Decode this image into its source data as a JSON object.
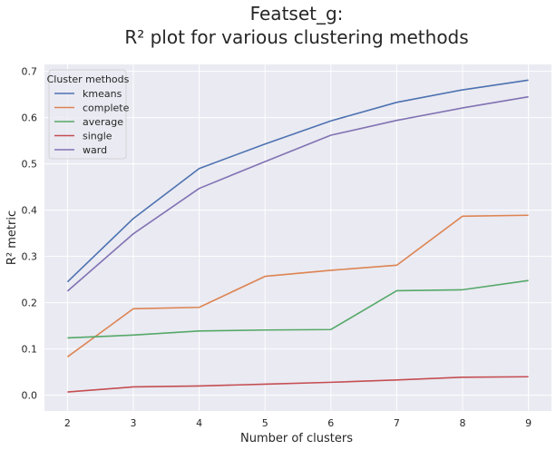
{
  "chart_data": {
    "type": "line",
    "title": "Featset_g:",
    "subtitle": "R² plot for various clustering methods",
    "xlabel": "Number of clusters",
    "ylabel": "R² metric",
    "x": [
      2,
      3,
      4,
      5,
      6,
      7,
      8,
      9
    ],
    "xlim": [
      1.65,
      9.35
    ],
    "ylim": [
      -0.034,
      0.715
    ],
    "yticks": [
      0.0,
      0.1,
      0.2,
      0.3,
      0.4,
      0.5,
      0.6,
      0.7
    ],
    "ytick_labels": [
      "0.0",
      "0.1",
      "0.2",
      "0.3",
      "0.4",
      "0.5",
      "0.6",
      "0.7"
    ],
    "xtick_labels": [
      "2",
      "3",
      "4",
      "5",
      "6",
      "7",
      "8",
      "9"
    ],
    "grid": true,
    "legend": {
      "title": "Cluster methods",
      "placement": "upper-left"
    },
    "series": [
      {
        "name": "kmeans",
        "color": "#4c72b0",
        "values": [
          0.245,
          0.382,
          0.49,
          0.543,
          0.593,
          0.633,
          0.66,
          0.681
        ]
      },
      {
        "name": "complete",
        "color": "#dd8452",
        "values": [
          0.083,
          0.187,
          0.19,
          0.257,
          0.27,
          0.281,
          0.387,
          0.389
        ]
      },
      {
        "name": "average",
        "color": "#55a868",
        "values": [
          0.124,
          0.13,
          0.139,
          0.141,
          0.142,
          0.226,
          0.228,
          0.248
        ]
      },
      {
        "name": "single",
        "color": "#c44e52",
        "values": [
          0.007,
          0.018,
          0.02,
          0.024,
          0.028,
          0.033,
          0.039,
          0.04
        ]
      },
      {
        "name": "ward",
        "color": "#8172b3",
        "values": [
          0.225,
          0.349,
          0.447,
          0.505,
          0.562,
          0.594,
          0.621,
          0.645
        ]
      }
    ]
  }
}
